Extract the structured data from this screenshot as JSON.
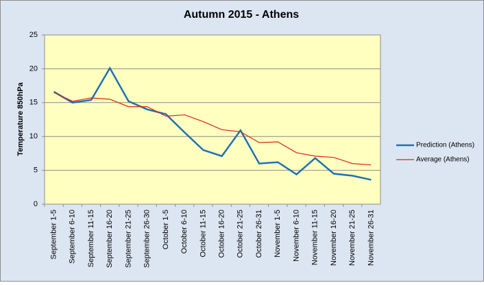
{
  "chart_data": {
    "type": "line",
    "title": "Autumn 2015 - Athens",
    "y_label": "Temperature 850hPa",
    "categories": [
      "September 1-5",
      "September 6-10",
      "September 11-15",
      "September 16-20",
      "September 21-25",
      "September 26-30",
      "October 1-5",
      "October 6-10",
      "October 11-15",
      "October 16-20",
      "October 21-25",
      "October 26-31",
      "November 1-5",
      "November 6-10",
      "November 11-15",
      "November 16-20",
      "November 21-25",
      "November 26-31"
    ],
    "series": [
      {
        "name": "Prediction (Athens)",
        "color": "#1f6fb5",
        "values": [
          16.6,
          15.0,
          15.4,
          20.1,
          15.2,
          14.0,
          13.3,
          10.6,
          8.0,
          7.1,
          10.9,
          6.0,
          6.2,
          4.4,
          6.8,
          4.5,
          4.2,
          3.6
        ]
      },
      {
        "name": "Average (Athens)",
        "color": "#e0201a",
        "values": [
          16.5,
          15.2,
          15.7,
          15.5,
          14.4,
          14.4,
          13.0,
          13.2,
          12.2,
          11.0,
          10.7,
          9.1,
          9.2,
          7.6,
          7.1,
          6.9,
          6.0,
          5.8
        ]
      }
    ],
    "ylim": [
      0,
      25
    ],
    "yticks": [
      0,
      5,
      10,
      15,
      20,
      25
    ],
    "grid": true,
    "legend": "right"
  }
}
